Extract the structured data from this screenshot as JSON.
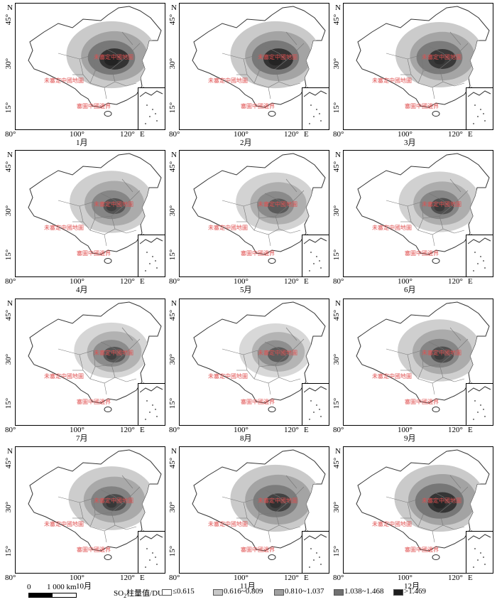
{
  "axis": {
    "north_label": "N",
    "east_label": "E",
    "y_ticks": [
      "45°",
      "30°",
      "15°"
    ],
    "x_ticks": [
      "80°",
      "100°",
      "120°"
    ]
  },
  "panel_watermarks": [
    "未審定中國地圖",
    "未審定中國地圖",
    "審圖中國邊界"
  ],
  "panels": [
    {
      "month": "1月",
      "levels": [
        0.95,
        0.85,
        0.75,
        0.65,
        0.55
      ]
    },
    {
      "month": "2月",
      "levels": [
        0.95,
        0.85,
        0.75,
        0.65,
        0.5
      ]
    },
    {
      "month": "3月",
      "levels": [
        0.9,
        0.8,
        0.7,
        0.55,
        0.15
      ]
    },
    {
      "month": "4月",
      "levels": [
        0.8,
        0.65,
        0.45,
        0.2,
        0.05
      ]
    },
    {
      "month": "5月",
      "levels": [
        0.7,
        0.55,
        0.35,
        0.15,
        0.0
      ]
    },
    {
      "month": "6月",
      "levels": [
        0.75,
        0.6,
        0.45,
        0.25,
        0.1
      ]
    },
    {
      "month": "7月",
      "levels": [
        0.6,
        0.5,
        0.35,
        0.2,
        0.05
      ]
    },
    {
      "month": "8月",
      "levels": [
        0.55,
        0.45,
        0.3,
        0.15,
        0.0
      ]
    },
    {
      "month": "9月",
      "levels": [
        0.8,
        0.65,
        0.45,
        0.25,
        0.05
      ]
    },
    {
      "month": "10月",
      "levels": [
        0.85,
        0.7,
        0.5,
        0.3,
        0.1
      ]
    },
    {
      "month": "11月",
      "levels": [
        0.95,
        0.85,
        0.65,
        0.4,
        0.2
      ]
    },
    {
      "month": "12月",
      "levels": [
        0.95,
        0.9,
        0.8,
        0.6,
        0.35
      ]
    }
  ],
  "legend": {
    "scale_zero": "0",
    "scale_label": "1 000 km",
    "title_prefix": "SO",
    "title_sub": "2",
    "title_suffix": "柱量值/DU",
    "classes": [
      {
        "label": "≤0.615",
        "color": "#ffffff"
      },
      {
        "label": "0.616~0.809",
        "color": "#c8c8c8"
      },
      {
        "label": "0.810~1.037",
        "color": "#a0a0a0"
      },
      {
        "label": "1.038~1.468",
        "color": "#707070"
      },
      {
        "label": ">1.469",
        "color": "#1e1e1e"
      }
    ]
  }
}
